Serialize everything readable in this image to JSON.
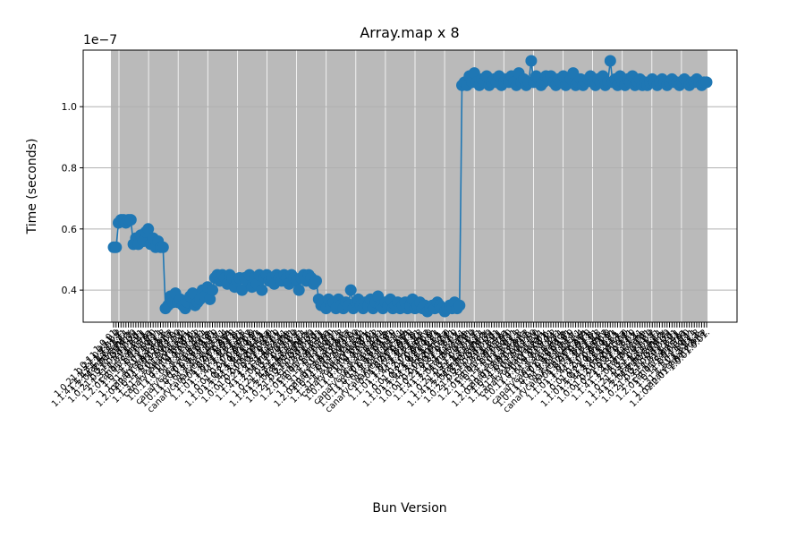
{
  "chart_data": {
    "type": "line",
    "title": "Array.map x 8",
    "xlabel": "Bun Version",
    "ylabel": "Time (seconds)",
    "y_offset_label": "1e−7",
    "y_scale_factor": 1e-07,
    "ylim": [
      0.295,
      1.185
    ],
    "yticks": [
      0.4,
      0.6,
      0.8,
      1.0
    ],
    "ytick_labels": [
      "0.4",
      "0.6",
      "0.8",
      "1.0"
    ],
    "grid": true,
    "marker": "circle",
    "shaded_region": "gray background behind all data points, separated by white vertical gridlines",
    "colors": {
      "line": "#1f77b4",
      "shade": "#bababa",
      "grid_major": "#b0b0b0",
      "grid_minor": "#ffffff"
    },
    "series": [
      {
        "values": [
          0.54,
          0.54,
          0.62,
          0.63,
          0.63,
          0.62,
          0.63,
          0.63,
          0.55,
          0.57,
          0.55,
          0.58,
          0.56,
          0.59,
          0.6,
          0.55,
          0.57,
          0.54,
          0.56,
          0.54,
          0.54,
          0.34,
          0.35,
          0.38,
          0.36,
          0.39,
          0.36,
          0.37,
          0.35,
          0.34,
          0.36,
          0.38,
          0.39,
          0.35,
          0.36,
          0.37,
          0.4,
          0.38,
          0.41,
          0.37,
          0.4,
          0.44,
          0.45,
          0.43,
          0.45,
          0.44,
          0.42,
          0.45,
          0.44,
          0.41,
          0.43,
          0.44,
          0.4,
          0.44,
          0.43,
          0.45,
          0.41,
          0.44,
          0.42,
          0.45,
          0.4,
          0.44,
          0.45,
          0.43,
          0.44,
          0.42,
          0.45,
          0.44,
          0.43,
          0.45,
          0.44,
          0.42,
          0.45,
          0.44,
          0.43,
          0.4,
          0.44,
          0.45,
          0.43,
          0.45,
          0.44,
          0.42,
          0.43,
          0.37,
          0.35,
          0.36,
          0.34,
          0.37,
          0.35,
          0.36,
          0.34,
          0.37,
          0.35,
          0.34,
          0.36,
          0.35,
          0.4,
          0.34,
          0.36,
          0.37,
          0.35,
          0.34,
          0.36,
          0.35,
          0.37,
          0.34,
          0.36,
          0.38,
          0.35,
          0.34,
          0.36,
          0.35,
          0.37,
          0.34,
          0.35,
          0.36,
          0.34,
          0.35,
          0.36,
          0.34,
          0.35,
          0.37,
          0.34,
          0.35,
          0.36,
          0.34,
          0.35,
          0.33,
          0.34,
          0.35,
          0.34,
          0.36,
          0.35,
          0.34,
          0.33,
          0.34,
          0.35,
          0.34,
          0.36,
          0.34,
          0.35,
          1.07,
          1.08,
          1.07,
          1.1,
          1.08,
          1.11,
          1.08,
          1.07,
          1.09,
          1.08,
          1.1,
          1.07,
          1.08,
          1.09,
          1.08,
          1.1,
          1.07,
          1.08,
          1.09,
          1.08,
          1.1,
          1.08,
          1.07,
          1.11,
          1.08,
          1.09,
          1.07,
          1.08,
          1.15,
          1.08,
          1.1,
          1.09,
          1.07,
          1.08,
          1.1,
          1.09,
          1.1,
          1.08,
          1.07,
          1.09,
          1.08,
          1.1,
          1.07,
          1.08,
          1.09,
          1.11,
          1.07,
          1.08,
          1.09,
          1.07,
          1.08,
          1.09,
          1.1,
          1.08,
          1.07,
          1.09,
          1.08,
          1.1,
          1.07,
          1.08,
          1.15,
          1.08,
          1.09,
          1.07,
          1.1,
          1.08,
          1.07,
          1.09,
          1.08,
          1.1,
          1.07,
          1.08,
          1.09,
          1.07,
          1.08,
          1.07,
          1.08,
          1.09,
          1.08,
          1.07,
          1.08,
          1.09,
          1.08,
          1.07,
          1.08,
          1.09,
          1.08,
          1.08,
          1.07,
          1.08,
          1.09,
          1.08,
          1.07,
          1.08,
          1.08,
          1.09,
          1.08,
          1.07,
          1.08,
          1.08
        ]
      }
    ]
  }
}
